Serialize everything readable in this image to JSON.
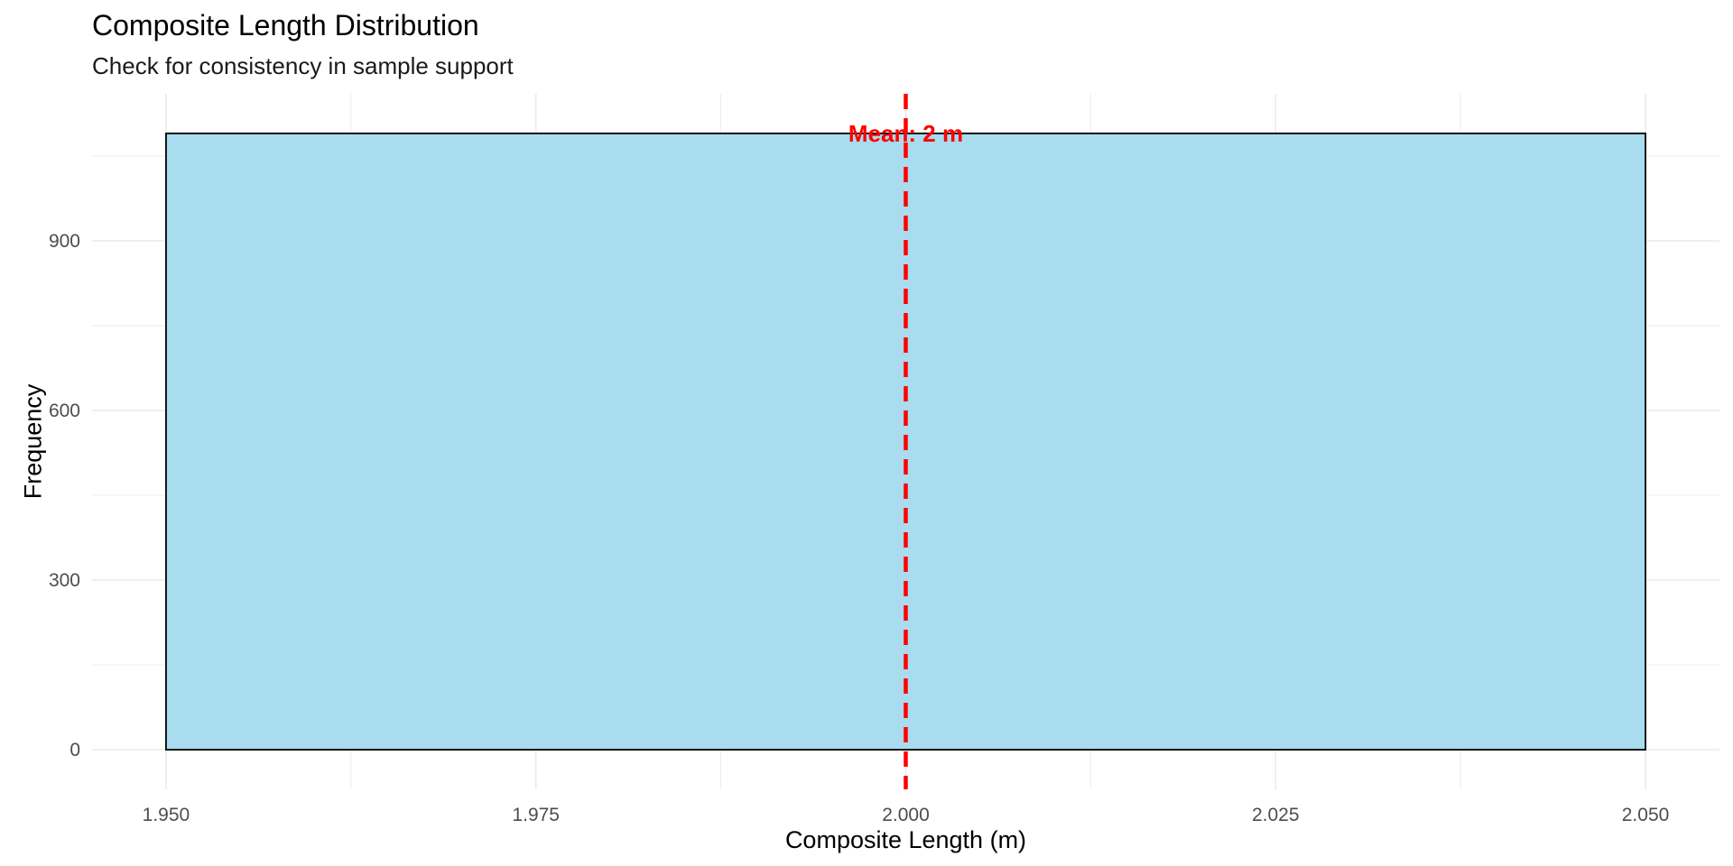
{
  "chart_data": {
    "type": "bar",
    "title": "Composite Length Distribution",
    "subtitle": "Check for consistency in sample support",
    "xlabel": "Composite Length (m)",
    "ylabel": "Frequency",
    "xlim": [
      1.945,
      2.055
    ],
    "ylim": [
      -70,
      1160
    ],
    "x_ticks": [
      1.95,
      1.975,
      2.0,
      2.025,
      2.05
    ],
    "x_tick_labels": [
      "1.950",
      "1.975",
      "2.000",
      "2.025",
      "2.050"
    ],
    "y_ticks": [
      0,
      300,
      600,
      900
    ],
    "y_tick_labels": [
      "0",
      "300",
      "600",
      "900"
    ],
    "bins": [
      {
        "x_start": 1.95,
        "x_end": 2.05,
        "count": 1090
      }
    ],
    "mean_line": {
      "x": 2.0,
      "label": "Mean: 2 m",
      "label_y": 1090
    },
    "grid": true,
    "legend": "none",
    "colors": {
      "bar_fill": "#a9dcef",
      "bar_stroke": "#000000",
      "mean_line": "#ff0000",
      "grid": "#ebebeb"
    }
  }
}
